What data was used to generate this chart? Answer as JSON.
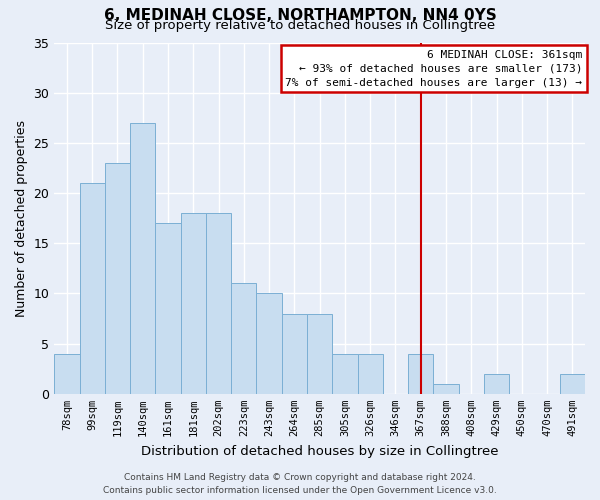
{
  "title": "6, MEDINAH CLOSE, NORTHAMPTON, NN4 0YS",
  "subtitle": "Size of property relative to detached houses in Collingtree",
  "xlabel": "Distribution of detached houses by size in Collingtree",
  "ylabel": "Number of detached properties",
  "bar_color": "#c8ddf0",
  "bar_edge_color": "#7bafd4",
  "categories": [
    "78sqm",
    "99sqm",
    "119sqm",
    "140sqm",
    "161sqm",
    "181sqm",
    "202sqm",
    "223sqm",
    "243sqm",
    "264sqm",
    "285sqm",
    "305sqm",
    "326sqm",
    "346sqm",
    "367sqm",
    "388sqm",
    "408sqm",
    "429sqm",
    "450sqm",
    "470sqm",
    "491sqm"
  ],
  "values": [
    4,
    21,
    23,
    27,
    17,
    18,
    18,
    11,
    10,
    8,
    8,
    4,
    4,
    0,
    4,
    1,
    0,
    2,
    0,
    0,
    2
  ],
  "ylim": [
    0,
    35
  ],
  "yticks": [
    0,
    5,
    10,
    15,
    20,
    25,
    30,
    35
  ],
  "vline_x_idx": 14,
  "vline_color": "#cc0000",
  "annotation_title": "6 MEDINAH CLOSE: 361sqm",
  "annotation_line1": "← 93% of detached houses are smaller (173)",
  "annotation_line2": "7% of semi-detached houses are larger (13) →",
  "annotation_box_edge": "#cc0000",
  "footer_line1": "Contains HM Land Registry data © Crown copyright and database right 2024.",
  "footer_line2": "Contains public sector information licensed under the Open Government Licence v3.0.",
  "background_color": "#e8eef8",
  "grid_color": "#ffffff",
  "title_fontsize": 11,
  "subtitle_fontsize": 9.5,
  "ylabel_fontsize": 9,
  "xlabel_fontsize": 9.5,
  "tick_fontsize": 7.5,
  "footer_fontsize": 6.5
}
